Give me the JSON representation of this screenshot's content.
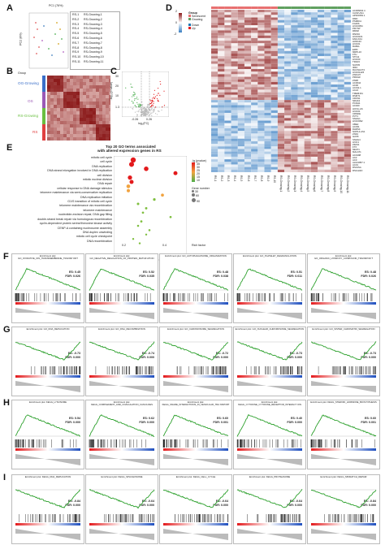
{
  "panels": {
    "A": {
      "letter": "A",
      "xlabel": "PC1 (76%)",
      "ylabel": "PC2 (8%)",
      "x_ticks": [
        "-20",
        "0",
        "20",
        "40"
      ],
      "legend_left": [
        "RS-1",
        "RS-2",
        "RS-3",
        "RS-4",
        "RS-5",
        "RS-6",
        "RS-7",
        "RS-8",
        "RS-9",
        "RS-10",
        "RS-11"
      ],
      "legend_right": [
        "RS-Growing-1",
        "RS-Growing-2",
        "RS-Growing-3",
        "RS-Growing-4",
        "RS-Growing-5",
        "RS-Growing-6",
        "RS-Growing-7",
        "RS-Growing-8",
        "RS-Growing-9",
        "RS-Growing-10",
        "RS-Growing-11"
      ]
    },
    "B": {
      "letter": "B",
      "group_title": "Group",
      "groups": [
        "OG-Growing",
        "OS",
        "RS-Growing",
        "RS"
      ]
    },
    "C": {
      "letter": "C",
      "ylabel": "-log₁₀(p value)",
      "xlabel": "log₂(FC)",
      "x_ticks": [
        "-0.26",
        "0.26"
      ],
      "y_tick": "1.3",
      "y_ticks": [
        "30",
        "20",
        "10"
      ]
    },
    "D": {
      "letter": "D",
      "legend_scale": [
        "2",
        "0",
        "-2"
      ],
      "group_title": "Group",
      "group_items": [
        "Senescent",
        "Growing"
      ],
      "dir_items": [
        "Down",
        "Up"
      ],
      "genes": [
        "AC006064.4",
        "CASP-AS1",
        "AP003352.1",
        "DMD",
        "PSMD11",
        "FGDIS",
        "LINC0054",
        "PRYSP",
        "RMS8",
        "RNF94",
        "LINC0101",
        "FAM-AS1",
        "LRRC43",
        "LINC01",
        "RAB11",
        "EIPR",
        "MRPL16",
        "FTH",
        "STK11",
        "LINC00",
        "TRAF3",
        "NUP35",
        "IRF2",
        "RACNACT2",
        "LINC01426",
        "ZNF137",
        "PRKAR",
        "ZNF8",
        "AC0044",
        "AC00",
        "AC011.1",
        "AC24",
        "TMEM161",
        "RSMT1",
        "CDKN1",
        "NR4A3",
        "PCDH1",
        "AC020",
        "HOXA-AS",
        "LINC01",
        "CRNDE",
        "PVT1",
        "SNHG1",
        "LINC0092",
        "UBE2",
        "AC031",
        "DHRS4",
        "NOP14-AS1",
        "ZNF4",
        "GAS5",
        "SNHG4",
        "LINC1",
        "ZFAS1",
        "FTX",
        "NEAT1",
        "MALAT1",
        "AC0198",
        "AC2",
        "AC0",
        "AL021857.1",
        "AC01",
        "RS01SA",
        "RS11H1D"
      ],
      "col_labels": [
        "RS-1",
        "RS-2",
        "RS-3",
        "RS-4",
        "RS-5",
        "RS-6",
        "RS-7",
        "RS-8",
        "RS-9",
        "RS-10",
        "RS-Growing-1",
        "RS-Growing-2",
        "RS-Growing-3",
        "RS-Growing-4",
        "RS-Growing-5",
        "RS-Growing-6",
        "RS-Growing-7",
        "RS-Growing-8",
        "RS-Growing-9",
        "RS-Growing-10",
        "RS-Growing-11"
      ]
    },
    "E": {
      "letter": "E",
      "title_line1": "Top 20 GO terms associated",
      "title_line2": "with altered expression genes in RS",
      "xlabel": "Rich factor",
      "x_ticks": [
        "0.2",
        "0.4"
      ],
      "legend_p": "-lg (pvalue)",
      "legend_p_ticks": [
        "35",
        "30",
        "25",
        "20",
        "15",
        "10"
      ],
      "legend_n": "Gene number",
      "legend_n_ticks": [
        "30",
        "60",
        "90"
      ],
      "terms": [
        "mitotic cell cycle",
        "cell cycle",
        "DNA replication",
        "DNA strand elongation involved in DNA replication",
        "cell division",
        "mitotic nuclear division",
        "DNA repair",
        "cellular response to DNA damage stimulus",
        "telomere maintenance via semi-conservative replication",
        "DNA replication initiation",
        "G1/S transition of mitotic cell cycle",
        "telomere maintenance via recombination",
        "telomere maintenance",
        "nucleotide-excision repair, DNA gap filling",
        "double-strand break repair via homologous recombination",
        "cyclin-dependent protein serine/threonine kinase activity",
        "CENP-A containing nucleosome assembly",
        "DNA duplex unwinding",
        "mitotic cell cycle checkpoint",
        "DNA recombination"
      ]
    },
    "F": {
      "letter": "F"
    },
    "G": {
      "letter": "G"
    },
    "H": {
      "letter": "H"
    },
    "I": {
      "letter": "I"
    }
  },
  "gsea_rows": [
    {
      "row": "F",
      "plots": [
        {
          "title": "Enrichment plot: GO_OXIDATIVE_ION_TRANSMEMBRANE_TRANSP ORT",
          "es": "ES: 0.45",
          "fdr": "FDR: 0.026"
        },
        {
          "title": "Enrichment plot: GO_NEGATIVE_REGULATION_OF_PROTEIN_MATUR ATION",
          "es": "ES: 0.52",
          "fdr": "FDR: 0.035"
        },
        {
          "title": "Enrichment plot: GO_AUTOPHAGOSOME_ORGANIZATION",
          "es": "ES: 0.48",
          "fdr": "FDR: 0.038"
        },
        {
          "title": "Enrichment plot: GO_PLATELET_DEGRANULATION",
          "es": "ES: 0.51",
          "fdr": "FDR: 0.011"
        },
        {
          "title": "Enrichment plot: GO_ORGANIC_HYDROXY_COMPOUND_TRANSPOR T",
          "es": "ES: 0.48",
          "fdr": "FDR: 0.026"
        }
      ]
    },
    {
      "row": "G",
      "plots": [
        {
          "title": "Enrichment plot: GO_DNA_REPLICATION",
          "es": "ES: -0.73",
          "fdr": "FDR: 0.000"
        },
        {
          "title": "Enrichment plot: GO_DNA_RECOMBINATION",
          "es": "ES: -0.74",
          "fdr": "FDR: 0.000"
        },
        {
          "title": "Enrichment plot: GO_CHROMOSOME_SEGREGATION",
          "es": "ES: -0.72",
          "fdr": "FDR: 0.000"
        },
        {
          "title": "Enrichment plot: GO_NUCLEAR_CHROMOSOME_SEGREGATION",
          "es": "ES: -0.73",
          "fdr": "FDR: 0.000"
        },
        {
          "title": "Enrichment plot: GO_SISTER_CHROMATID_SEGREGATION",
          "es": "ES: -0.73",
          "fdr": "FDR: 0.000"
        }
      ]
    },
    {
      "row": "H",
      "plots": [
        {
          "title": "Enrichment plot: KEGG_LYSOSOME",
          "es": "ES: 0.54",
          "fdr": "FDR: 0.000"
        },
        {
          "title": "Enrichment plot: KEGG_COMPLEMENT_AND_COAGULATION_CASCA DES",
          "es": "ES: 0.62",
          "fdr": "FDR: 0.000"
        },
        {
          "title": "Enrichment plot: KEGG_SNARE_INTERACTIONS_IN_VESICULAR_TRA NSPORT",
          "es": "ES: 0.60",
          "fdr": "FDR: 0.001"
        },
        {
          "title": "Enrichment plot: KEGG_CYTOKINE_CYTOKINE_RECEPTOR_INTERACT ION",
          "es": "ES: 0.40",
          "fdr": "FDR: 0.000"
        },
        {
          "title": "Enrichment plot: KEGG_STEROID_HORMONE_BIOSYNTHESIS",
          "es": "ES: 0.60",
          "fdr": "FDR: 0.001"
        }
      ]
    },
    {
      "row": "I",
      "plots": [
        {
          "title": "Enrichment plot: KEGG_DNA_REPLICATION",
          "es": "ES: -0.84",
          "fdr": "FDR: 0.000"
        },
        {
          "title": "Enrichment plot: KEGG_SPLICEOSOME",
          "es": "ES: -0.64",
          "fdr": "FDR: 0.000"
        },
        {
          "title": "Enrichment plot: KEGG_CELL_CYCLE",
          "es": "ES: -0.64",
          "fdr": "FDR: 0.000"
        },
        {
          "title": "Enrichment plot: KEGG_PROTEASOME",
          "es": "ES: -0.64",
          "fdr": "FDR: 0.000"
        },
        {
          "title": "Enrichment plot: KEGG_MISMATCH_REPAIR",
          "es": "ES: -0.84",
          "fdr": "FDR: 0.000"
        }
      ]
    }
  ],
  "colors": {
    "up": "#e31a1c",
    "down": "#1f78b4",
    "curve": "#2ca02c",
    "heat_high": "#8b1a1a",
    "heat_low": "#3a7fc2"
  }
}
